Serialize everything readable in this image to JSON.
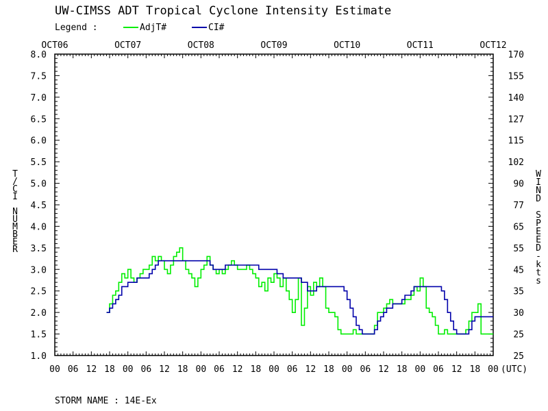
{
  "chart_data": {
    "type": "line",
    "title": "UW-CIMSS ADT Tropical Cyclone Intensity Estimate",
    "legend_label": "Legend :",
    "legend_placement": "top-left",
    "ylabel": "T/CI NUMBER",
    "y2label": "WIND SPEED-kts",
    "xunit_label": "(UTC)",
    "footer": "STORM NAME : 14E-Ex",
    "ylim": [
      1.0,
      8.0
    ],
    "y_ticks": [
      "1.0",
      "1.5",
      "2.0",
      "2.5",
      "3.0",
      "3.5",
      "4.0",
      "4.5",
      "5.0",
      "5.5",
      "6.0",
      "6.5",
      "7.0",
      "7.5",
      "8.0"
    ],
    "y2_ticks": [
      "25",
      "25",
      "30",
      "35",
      "45",
      "55",
      "65",
      "77",
      "90",
      "102",
      "115",
      "127",
      "140",
      "155",
      "170"
    ],
    "date_labels": [
      "OCT06",
      "OCT07",
      "OCT08",
      "OCT09",
      "OCT10",
      "OCT11",
      "OCT12"
    ],
    "hour_labels": [
      "00",
      "06",
      "12",
      "18",
      "00",
      "06",
      "12",
      "18",
      "00",
      "06",
      "12",
      "18",
      "00",
      "06",
      "12",
      "18",
      "00",
      "06",
      "12",
      "18",
      "00",
      "06",
      "12",
      "18",
      "00"
    ],
    "xlim_hours": [
      0,
      144
    ],
    "grid": false,
    "series": [
      {
        "name": "AdjT#",
        "color": "#00ee00",
        "points": [
          [
            17.0,
            2.0
          ],
          [
            18.0,
            2.2
          ],
          [
            19.0,
            2.4
          ],
          [
            20.0,
            2.5
          ],
          [
            21.0,
            2.7
          ],
          [
            22.0,
            2.9
          ],
          [
            23.0,
            2.8
          ],
          [
            24.0,
            3.0
          ],
          [
            25.0,
            2.8
          ],
          [
            26.0,
            2.7
          ],
          [
            27.0,
            2.8
          ],
          [
            28.0,
            2.9
          ],
          [
            29.0,
            3.0
          ],
          [
            30.0,
            3.0
          ],
          [
            31.0,
            3.1
          ],
          [
            32.0,
            3.3
          ],
          [
            33.0,
            3.2
          ],
          [
            34.0,
            3.3
          ],
          [
            35.0,
            3.2
          ],
          [
            36.0,
            3.0
          ],
          [
            37.0,
            2.9
          ],
          [
            38.0,
            3.1
          ],
          [
            39.0,
            3.3
          ],
          [
            40.0,
            3.4
          ],
          [
            41.0,
            3.5
          ],
          [
            42.0,
            3.2
          ],
          [
            43.0,
            3.0
          ],
          [
            44.0,
            2.9
          ],
          [
            45.0,
            2.8
          ],
          [
            46.0,
            2.6
          ],
          [
            47.0,
            2.8
          ],
          [
            48.0,
            3.0
          ],
          [
            49.0,
            3.1
          ],
          [
            50.0,
            3.3
          ],
          [
            51.0,
            3.1
          ],
          [
            52.0,
            3.0
          ],
          [
            53.0,
            2.9
          ],
          [
            54.0,
            3.0
          ],
          [
            55.0,
            2.9
          ],
          [
            56.0,
            3.0
          ],
          [
            57.0,
            3.1
          ],
          [
            58.0,
            3.2
          ],
          [
            59.0,
            3.1
          ],
          [
            60.0,
            3.0
          ],
          [
            61.0,
            3.0
          ],
          [
            62.0,
            3.0
          ],
          [
            63.0,
            3.1
          ],
          [
            64.0,
            3.0
          ],
          [
            65.0,
            2.9
          ],
          [
            66.0,
            2.8
          ],
          [
            67.0,
            2.6
          ],
          [
            68.0,
            2.7
          ],
          [
            69.0,
            2.5
          ],
          [
            70.0,
            2.8
          ],
          [
            71.0,
            2.7
          ],
          [
            72.0,
            2.9
          ],
          [
            73.0,
            2.8
          ],
          [
            74.0,
            2.6
          ],
          [
            75.0,
            2.8
          ],
          [
            76.0,
            2.5
          ],
          [
            77.0,
            2.3
          ],
          [
            78.0,
            2.0
          ],
          [
            79.0,
            2.3
          ],
          [
            80.0,
            2.8
          ],
          [
            81.0,
            1.7
          ],
          [
            82.0,
            2.1
          ],
          [
            83.0,
            2.6
          ],
          [
            84.0,
            2.4
          ],
          [
            85.0,
            2.7
          ],
          [
            86.0,
            2.6
          ],
          [
            87.0,
            2.8
          ],
          [
            88.0,
            2.6
          ],
          [
            89.0,
            2.1
          ],
          [
            90.0,
            2.0
          ],
          [
            91.0,
            2.0
          ],
          [
            92.0,
            1.9
          ],
          [
            93.0,
            1.6
          ],
          [
            94.0,
            1.5
          ],
          [
            95.0,
            1.5
          ],
          [
            96.0,
            1.5
          ],
          [
            97.0,
            1.5
          ],
          [
            98.0,
            1.6
          ],
          [
            99.0,
            1.5
          ],
          [
            100.0,
            1.5
          ],
          [
            101.0,
            1.5
          ],
          [
            102.0,
            1.5
          ],
          [
            103.0,
            1.5
          ],
          [
            104.0,
            1.5
          ],
          [
            105.0,
            1.7
          ],
          [
            106.0,
            2.0
          ],
          [
            107.0,
            2.0
          ],
          [
            108.0,
            2.1
          ],
          [
            109.0,
            2.2
          ],
          [
            110.0,
            2.3
          ],
          [
            111.0,
            2.2
          ],
          [
            112.0,
            2.2
          ],
          [
            113.0,
            2.2
          ],
          [
            114.0,
            2.2
          ],
          [
            115.0,
            2.3
          ],
          [
            116.0,
            2.3
          ],
          [
            117.0,
            2.4
          ],
          [
            118.0,
            2.6
          ],
          [
            119.0,
            2.5
          ],
          [
            120.0,
            2.8
          ],
          [
            121.0,
            2.6
          ],
          [
            122.0,
            2.1
          ],
          [
            123.0,
            2.0
          ],
          [
            124.0,
            1.9
          ],
          [
            125.0,
            1.7
          ],
          [
            126.0,
            1.5
          ],
          [
            127.0,
            1.5
          ],
          [
            128.0,
            1.6
          ],
          [
            129.0,
            1.5
          ],
          [
            130.0,
            1.5
          ],
          [
            131.0,
            1.5
          ],
          [
            132.0,
            1.5
          ],
          [
            133.0,
            1.5
          ],
          [
            134.0,
            1.5
          ],
          [
            135.0,
            1.6
          ],
          [
            136.0,
            1.8
          ],
          [
            137.0,
            2.0
          ],
          [
            138.0,
            2.0
          ],
          [
            139.0,
            2.2
          ],
          [
            140.0,
            1.5
          ],
          [
            141.0,
            1.5
          ],
          [
            142.0,
            1.5
          ],
          [
            143.0,
            1.5
          ],
          [
            144.0,
            1.5
          ]
        ]
      },
      {
        "name": "CI#",
        "color": "#0000aa",
        "points": [
          [
            17.0,
            2.0
          ],
          [
            18.0,
            2.1
          ],
          [
            19.0,
            2.2
          ],
          [
            20.0,
            2.3
          ],
          [
            21.0,
            2.4
          ],
          [
            22.0,
            2.6
          ],
          [
            23.0,
            2.6
          ],
          [
            24.0,
            2.7
          ],
          [
            25.0,
            2.7
          ],
          [
            26.0,
            2.7
          ],
          [
            27.0,
            2.8
          ],
          [
            28.0,
            2.8
          ],
          [
            29.0,
            2.8
          ],
          [
            30.0,
            2.8
          ],
          [
            31.0,
            2.9
          ],
          [
            32.0,
            3.0
          ],
          [
            33.0,
            3.1
          ],
          [
            34.0,
            3.2
          ],
          [
            35.0,
            3.2
          ],
          [
            36.0,
            3.2
          ],
          [
            37.0,
            3.2
          ],
          [
            38.0,
            3.2
          ],
          [
            39.0,
            3.2
          ],
          [
            40.0,
            3.2
          ],
          [
            41.0,
            3.2
          ],
          [
            42.0,
            3.2
          ],
          [
            43.0,
            3.2
          ],
          [
            44.0,
            3.2
          ],
          [
            45.0,
            3.2
          ],
          [
            46.0,
            3.2
          ],
          [
            47.0,
            3.2
          ],
          [
            48.0,
            3.2
          ],
          [
            49.0,
            3.2
          ],
          [
            50.0,
            3.2
          ],
          [
            51.0,
            3.1
          ],
          [
            52.0,
            3.0
          ],
          [
            53.0,
            3.0
          ],
          [
            54.0,
            3.0
          ],
          [
            55.0,
            3.0
          ],
          [
            56.0,
            3.1
          ],
          [
            57.0,
            3.1
          ],
          [
            58.0,
            3.1
          ],
          [
            59.0,
            3.1
          ],
          [
            60.0,
            3.1
          ],
          [
            61.0,
            3.1
          ],
          [
            62.0,
            3.1
          ],
          [
            63.0,
            3.1
          ],
          [
            64.0,
            3.1
          ],
          [
            65.0,
            3.1
          ],
          [
            66.0,
            3.1
          ],
          [
            67.0,
            3.0
          ],
          [
            68.0,
            3.0
          ],
          [
            69.0,
            3.0
          ],
          [
            70.0,
            3.0
          ],
          [
            71.0,
            3.0
          ],
          [
            72.0,
            3.0
          ],
          [
            73.0,
            2.9
          ],
          [
            74.0,
            2.9
          ],
          [
            75.0,
            2.8
          ],
          [
            76.0,
            2.8
          ],
          [
            77.0,
            2.8
          ],
          [
            78.0,
            2.8
          ],
          [
            79.0,
            2.8
          ],
          [
            80.0,
            2.8
          ],
          [
            81.0,
            2.7
          ],
          [
            82.0,
            2.7
          ],
          [
            83.0,
            2.5
          ],
          [
            84.0,
            2.5
          ],
          [
            85.0,
            2.5
          ],
          [
            86.0,
            2.6
          ],
          [
            87.0,
            2.6
          ],
          [
            88.0,
            2.6
          ],
          [
            89.0,
            2.6
          ],
          [
            90.0,
            2.6
          ],
          [
            91.0,
            2.6
          ],
          [
            92.0,
            2.6
          ],
          [
            93.0,
            2.6
          ],
          [
            94.0,
            2.6
          ],
          [
            95.0,
            2.5
          ],
          [
            96.0,
            2.3
          ],
          [
            97.0,
            2.1
          ],
          [
            98.0,
            1.9
          ],
          [
            99.0,
            1.7
          ],
          [
            100.0,
            1.6
          ],
          [
            101.0,
            1.5
          ],
          [
            102.0,
            1.5
          ],
          [
            103.0,
            1.5
          ],
          [
            104.0,
            1.5
          ],
          [
            105.0,
            1.6
          ],
          [
            106.0,
            1.8
          ],
          [
            107.0,
            1.9
          ],
          [
            108.0,
            2.0
          ],
          [
            109.0,
            2.1
          ],
          [
            110.0,
            2.1
          ],
          [
            111.0,
            2.2
          ],
          [
            112.0,
            2.2
          ],
          [
            113.0,
            2.2
          ],
          [
            114.0,
            2.3
          ],
          [
            115.0,
            2.4
          ],
          [
            116.0,
            2.4
          ],
          [
            117.0,
            2.5
          ],
          [
            118.0,
            2.6
          ],
          [
            119.0,
            2.6
          ],
          [
            120.0,
            2.6
          ],
          [
            121.0,
            2.6
          ],
          [
            122.0,
            2.6
          ],
          [
            123.0,
            2.6
          ],
          [
            124.0,
            2.6
          ],
          [
            125.0,
            2.6
          ],
          [
            126.0,
            2.6
          ],
          [
            127.0,
            2.5
          ],
          [
            128.0,
            2.3
          ],
          [
            129.0,
            2.0
          ],
          [
            130.0,
            1.8
          ],
          [
            131.0,
            1.6
          ],
          [
            132.0,
            1.5
          ],
          [
            133.0,
            1.5
          ],
          [
            134.0,
            1.5
          ],
          [
            135.0,
            1.5
          ],
          [
            136.0,
            1.6
          ],
          [
            137.0,
            1.8
          ],
          [
            138.0,
            1.9
          ],
          [
            139.0,
            1.9
          ],
          [
            140.0,
            1.9
          ],
          [
            141.0,
            1.9
          ],
          [
            142.0,
            1.9
          ],
          [
            143.0,
            1.9
          ],
          [
            144.0,
            1.9
          ]
        ]
      }
    ]
  }
}
